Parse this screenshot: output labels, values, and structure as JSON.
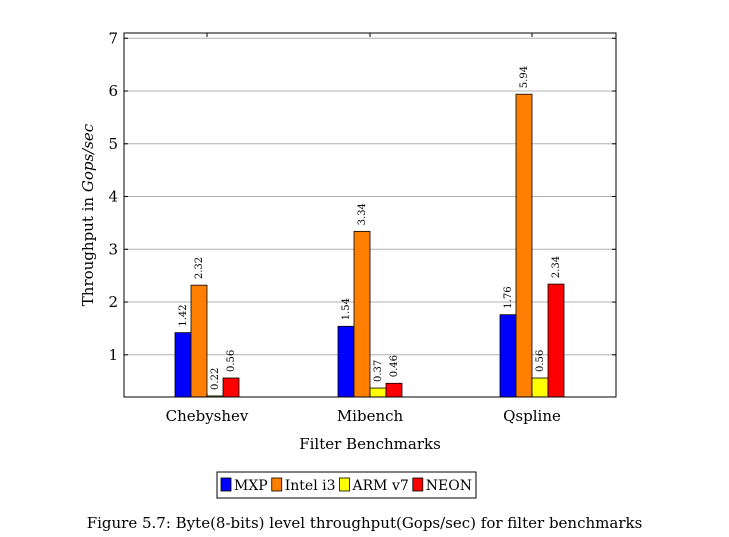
{
  "chart_data": {
    "type": "bar",
    "categories": [
      "Chebyshev",
      "Mibench",
      "Qspline"
    ],
    "series": [
      {
        "name": "MXP",
        "color": "#0000ff",
        "values": [
          1.42,
          1.54,
          1.76
        ],
        "labels": [
          "1.42",
          "1.54",
          "1.76"
        ]
      },
      {
        "name": "Intel i3",
        "color": "#ff8000",
        "values": [
          2.32,
          3.34,
          5.94
        ],
        "labels": [
          "2.32",
          "3.34",
          "5.94"
        ]
      },
      {
        "name": "ARM v7",
        "color": "#ffff00",
        "values": [
          0.22,
          0.37,
          0.56
        ],
        "labels": [
          "0.22",
          "0.37",
          "0.56"
        ]
      },
      {
        "name": "NEON",
        "color": "#ff0000",
        "values": [
          0.56,
          0.46,
          2.34
        ],
        "labels": [
          "0.56",
          "0.46",
          "2.34"
        ]
      }
    ],
    "ylim": [
      0.2,
      7.1
    ],
    "yticks": [
      1,
      2,
      3,
      4,
      5,
      6,
      7
    ],
    "ytick_labels": [
      "1",
      "2",
      "3",
      "4",
      "5",
      "6",
      "7"
    ],
    "ylabel_prefix": "Throughput in ",
    "ylabel_unit": "Gops/sec",
    "xlabel": "Filter Benchmarks",
    "grid": "horizontal",
    "legend_position": "bottom-center"
  },
  "caption": "Figure 5.7: Byte(8-bits) level throughput(Gops/sec) for filter benchmarks"
}
